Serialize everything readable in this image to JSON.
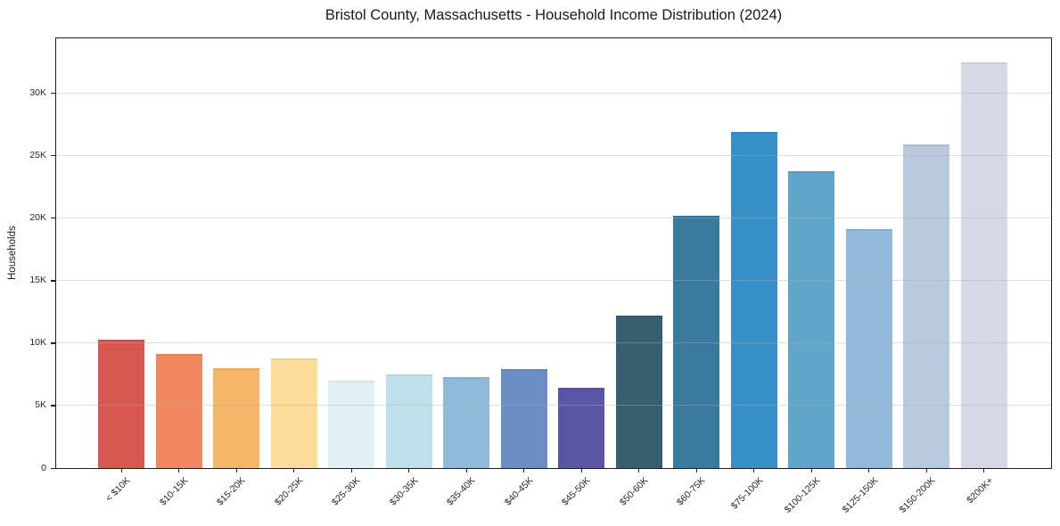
{
  "chart_data": {
    "type": "bar",
    "title": "Bristol County, Massachusetts - Household Income Distribution (2024)",
    "xlabel": "",
    "ylabel": "Households",
    "categories": [
      "< $10K",
      "$10-15K",
      "$15-20K",
      "$20-25K",
      "$25-30K",
      "$30-35K",
      "$35-40K",
      "$40-45K",
      "$45-50K",
      "$50-60K",
      "$60-75K",
      "$75-100K",
      "$100-125K",
      "$125-150K",
      "$150-200K",
      "$200K+"
    ],
    "values": [
      10300,
      9100,
      8000,
      8800,
      7000,
      7500,
      7300,
      7900,
      6400,
      12200,
      20200,
      26900,
      23800,
      19100,
      25900,
      32500
    ],
    "bar_colors": [
      "#d75850",
      "#f0875f",
      "#f7b569",
      "#fddc9a",
      "#e1f1f3",
      "#bfe0ea",
      "#8fbada",
      "#6b8ec4",
      "#5a55a4",
      "#365f70",
      "#3a7a9e",
      "#3690c5",
      "#60a5ca",
      "#92b8da",
      "#b9c9de",
      "#d7d8e5"
    ],
    "ylim": [
      0,
      34400
    ],
    "yticks": [
      {
        "value": 0,
        "label": "0"
      },
      {
        "value": 5000,
        "label": "5K"
      },
      {
        "value": 10000,
        "label": "10K"
      },
      {
        "value": 15000,
        "label": "15K"
      },
      {
        "value": 20000,
        "label": "20K"
      },
      {
        "value": 25000,
        "label": "25K"
      },
      {
        "value": 30000,
        "label": "30K"
      }
    ],
    "grid": "horizontal",
    "legend": null,
    "x_tick_rotation": 45
  }
}
